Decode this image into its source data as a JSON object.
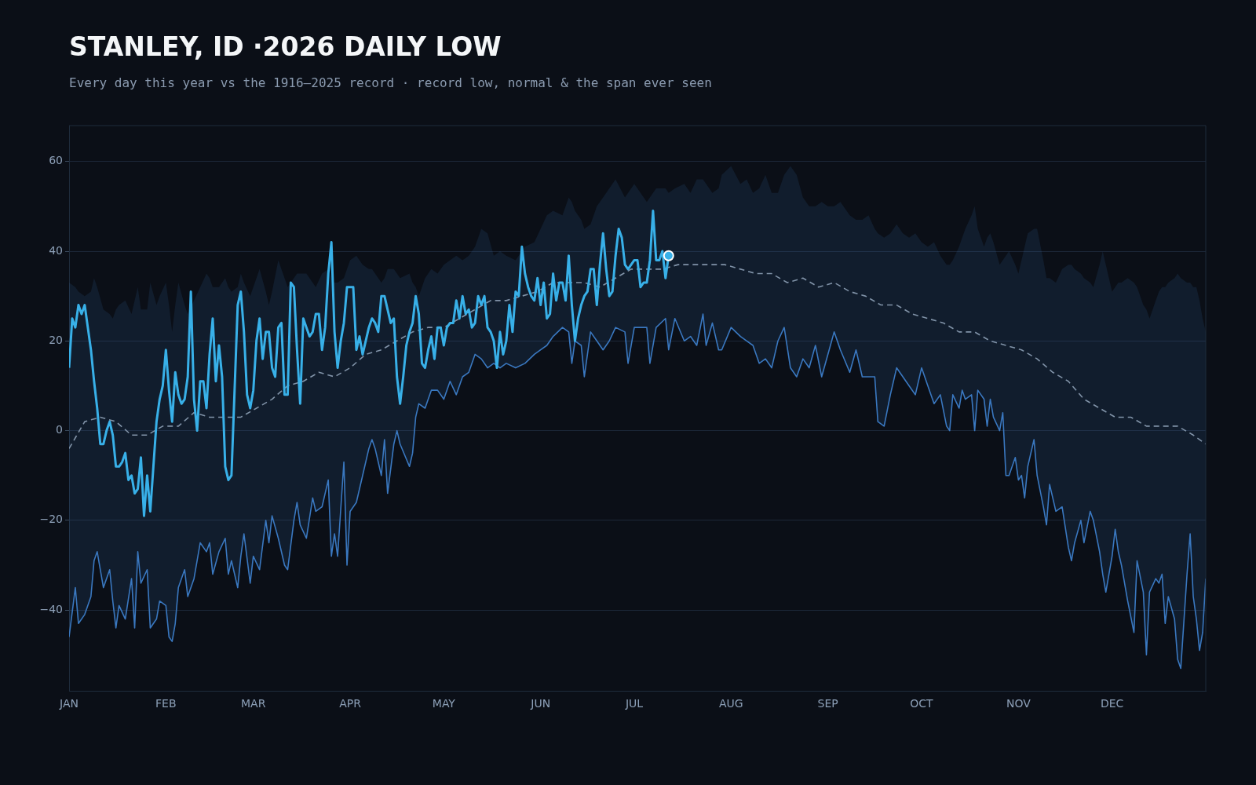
{
  "chart_data": {
    "type": "line",
    "title": "STANLEY, ID ·2026 DAILY LOW",
    "subtitle": "Every day this year vs the 1916–2025 record · record low, normal & the span ever seen",
    "xlim": [
      "2026-01-01",
      "2026-12-31"
    ],
    "xticks": [
      {
        "value": "2026-01-01",
        "label": "JAN"
      },
      {
        "value": "2026-02-01",
        "label": "FEB"
      },
      {
        "value": "2026-03-01",
        "label": "MAR"
      },
      {
        "value": "2026-04-01",
        "label": "APR"
      },
      {
        "value": "2026-05-01",
        "label": "MAY"
      },
      {
        "value": "2026-06-01",
        "label": "JUN"
      },
      {
        "value": "2026-07-01",
        "label": "JUL"
      },
      {
        "value": "2026-08-01",
        "label": "AUG"
      },
      {
        "value": "2026-09-01",
        "label": "SEP"
      },
      {
        "value": "2026-10-01",
        "label": "OCT"
      },
      {
        "value": "2026-11-01",
        "label": "NOV"
      },
      {
        "value": "2026-12-01",
        "label": "DEC"
      }
    ],
    "ylim": [
      -58,
      68
    ],
    "yticks": [
      {
        "value": -40,
        "label": "−40"
      },
      {
        "value": -20,
        "label": "−20"
      },
      0,
      20,
      40,
      60
    ],
    "grid": "y",
    "series": [
      {
        "type": "line",
        "color": "#3a78c0",
        "x": [
          "2026-01-01",
          "2026-01-03",
          "2026-01-04",
          "2026-01-06",
          "2026-01-08",
          "2026-01-09",
          "2026-01-10",
          "2026-01-12",
          "2026-01-14",
          "2026-01-15",
          "2026-01-16",
          "2026-01-17",
          "2026-01-19",
          "2026-01-21",
          "2026-01-22",
          "2026-01-23",
          "2026-01-24",
          "2026-01-26",
          "2026-01-27",
          "2026-01-29",
          "2026-01-30",
          "2026-02-01",
          "2026-02-02",
          "2026-02-03",
          "2026-02-04",
          "2026-02-05",
          "2026-02-07",
          "2026-02-08",
          "2026-02-10",
          "2026-02-12",
          "2026-02-14",
          "2026-02-15",
          "2026-02-16",
          "2026-02-18",
          "2026-02-20",
          "2026-02-21",
          "2026-02-22",
          "2026-02-24",
          "2026-02-25",
          "2026-02-26",
          "2026-02-28",
          "2026-03-01",
          "2026-03-03",
          "2026-03-05",
          "2026-03-06",
          "2026-03-07",
          "2026-03-09",
          "2026-03-11",
          "2026-03-12",
          "2026-03-14",
          "2026-03-15",
          "2026-03-16",
          "2026-03-18",
          "2026-03-20",
          "2026-03-21",
          "2026-03-23",
          "2026-03-25",
          "2026-03-26",
          "2026-03-27",
          "2026-03-28",
          "2026-03-30",
          "2026-03-31",
          "2026-04-01",
          "2026-04-03",
          "2026-04-05",
          "2026-04-07",
          "2026-04-08",
          "2026-04-09",
          "2026-04-11",
          "2026-04-12",
          "2026-04-13",
          "2026-04-15",
          "2026-04-16",
          "2026-04-17",
          "2026-04-20",
          "2026-04-21",
          "2026-04-22",
          "2026-04-23",
          "2026-04-25",
          "2026-04-27",
          "2026-04-29",
          "2026-05-01",
          "2026-05-03",
          "2026-05-05",
          "2026-05-07",
          "2026-05-09",
          "2026-05-11",
          "2026-05-13",
          "2026-05-15",
          "2026-05-17",
          "2026-05-19",
          "2026-05-21",
          "2026-05-24",
          "2026-05-27",
          "2026-05-30",
          "2026-06-01",
          "2026-06-03",
          "2026-06-05",
          "2026-06-08",
          "2026-06-10",
          "2026-06-11",
          "2026-06-12",
          "2026-06-14",
          "2026-06-15",
          "2026-06-17",
          "2026-06-19",
          "2026-06-21",
          "2026-06-23",
          "2026-06-25",
          "2026-06-28",
          "2026-06-29",
          "2026-07-01",
          "2026-07-05",
          "2026-07-06",
          "2026-07-08",
          "2026-07-11",
          "2026-07-12",
          "2026-07-14",
          "2026-07-17",
          "2026-07-19",
          "2026-07-21",
          "2026-07-23",
          "2026-07-24",
          "2026-07-26",
          "2026-07-28",
          "2026-07-29",
          "2026-08-01",
          "2026-08-04",
          "2026-08-06",
          "2026-08-08",
          "2026-08-10",
          "2026-08-12",
          "2026-08-14",
          "2026-08-16",
          "2026-08-18",
          "2026-08-20",
          "2026-08-22",
          "2026-08-24",
          "2026-08-26",
          "2026-08-28",
          "2026-08-30",
          "2026-09-01",
          "2026-09-03",
          "2026-09-05",
          "2026-09-08",
          "2026-09-10",
          "2026-09-12",
          "2026-09-14",
          "2026-09-16",
          "2026-09-17",
          "2026-09-19",
          "2026-09-21",
          "2026-09-23",
          "2026-09-25",
          "2026-09-27",
          "2026-09-29",
          "2026-10-01",
          "2026-10-03",
          "2026-10-05",
          "2026-10-07",
          "2026-10-09",
          "2026-10-10",
          "2026-10-11",
          "2026-10-13",
          "2026-10-14",
          "2026-10-15",
          "2026-10-17",
          "2026-10-18",
          "2026-10-19",
          "2026-10-21",
          "2026-10-22",
          "2026-10-23",
          "2026-10-24",
          "2026-10-26",
          "2026-10-27",
          "2026-10-28",
          "2026-10-29",
          "2026-10-31",
          "2026-11-01",
          "2026-11-02",
          "2026-11-03",
          "2026-11-04",
          "2026-11-06",
          "2026-11-07",
          "2026-11-09",
          "2026-11-10",
          "2026-11-11",
          "2026-11-13",
          "2026-11-15",
          "2026-11-17",
          "2026-11-18",
          "2026-11-19",
          "2026-11-21",
          "2026-11-22",
          "2026-11-24",
          "2026-11-25",
          "2026-11-27",
          "2026-11-28",
          "2026-11-29",
          "2026-12-01",
          "2026-12-02",
          "2026-12-03",
          "2026-12-04",
          "2026-12-06",
          "2026-12-08",
          "2026-12-09",
          "2026-12-11",
          "2026-12-12",
          "2026-12-13",
          "2026-12-15",
          "2026-12-16",
          "2026-12-17",
          "2026-12-18",
          "2026-12-19",
          "2026-12-21",
          "2026-12-22",
          "2026-12-23",
          "2026-12-25",
          "2026-12-26",
          "2026-12-27",
          "2026-12-28",
          "2026-12-29",
          "2026-12-30",
          "2026-12-31"
        ],
        "values": [
          -46,
          -35,
          -43,
          -41,
          -37,
          -29,
          -27,
          -35,
          -31,
          -38,
          -44,
          -39,
          -42,
          -33,
          -44,
          -27,
          -34,
          -31,
          -44,
          -42,
          -38,
          -39,
          -46,
          -47,
          -43,
          -35,
          -31,
          -37,
          -33,
          -25,
          -27,
          -25,
          -32,
          -27,
          -24,
          -32,
          -29,
          -35,
          -28,
          -23,
          -34,
          -28,
          -31,
          -20,
          -25,
          -19,
          -24,
          -30,
          -31,
          -20,
          -16,
          -21,
          -24,
          -15,
          -18,
          -17,
          -11,
          -28,
          -23,
          -28,
          -7,
          -30,
          -18,
          -16,
          -10,
          -4,
          -2,
          -4,
          -10,
          -2,
          -14,
          -3,
          0,
          -3,
          -8,
          -5,
          3,
          6,
          5,
          9,
          9,
          7,
          11,
          8,
          12,
          13,
          17,
          16,
          14,
          15,
          14,
          15,
          14,
          15,
          17,
          18,
          19,
          21,
          23,
          22,
          15,
          20,
          19,
          12,
          22,
          20,
          18,
          20,
          23,
          22,
          15,
          23,
          23,
          15,
          23,
          25,
          18,
          25,
          20,
          21,
          19,
          26,
          19,
          24,
          18,
          18,
          23,
          21,
          20,
          19,
          15,
          16,
          14,
          20,
          23,
          14,
          12,
          16,
          14,
          19,
          12,
          17,
          22,
          18,
          13,
          18,
          12,
          12,
          12,
          2,
          1,
          8,
          14,
          12,
          10,
          8,
          14,
          10,
          6,
          8,
          1,
          0,
          8,
          5,
          9,
          7,
          8,
          0,
          9,
          7,
          1,
          7,
          3,
          0,
          4,
          -10,
          -10,
          -6,
          -11,
          -10,
          -15,
          -8,
          -2,
          -10,
          -17,
          -21,
          -12,
          -18,
          -17,
          -26,
          -29,
          -25,
          -20,
          -25,
          -18,
          -20,
          -27,
          -32,
          -36,
          -28,
          -22,
          -27,
          -30,
          -38,
          -45,
          -29,
          -36,
          -50,
          -36,
          -33,
          -34,
          -32,
          -43,
          -37,
          -42,
          -51,
          -53,
          -32,
          -23,
          -37,
          -42,
          -49,
          -45,
          -33
        ],
        "lower": [
          -46,
          -35,
          -43,
          -41,
          -37,
          -29,
          -27,
          -35,
          -31,
          -38,
          -44,
          -39,
          -42,
          -33,
          -44,
          -27,
          -34,
          -31,
          -44,
          -42,
          -38,
          -39,
          -46,
          -47,
          -43,
          -35,
          -31,
          -37,
          -33,
          -25,
          -27,
          -25,
          -32,
          -27,
          -24,
          -32,
          -29,
          -35,
          -28,
          -23,
          -34,
          -28,
          -31,
          -20,
          -25,
          -19,
          -24,
          -30,
          -31,
          -20,
          -16,
          -21,
          -24,
          -15,
          -18,
          -17,
          -11,
          -28,
          -23,
          -28,
          -7,
          -30,
          -18,
          -16,
          -10,
          -4,
          -2,
          -4,
          -10,
          -2,
          -14,
          -3,
          0,
          -3,
          -8,
          -5,
          3,
          6,
          5,
          9,
          9,
          7,
          11,
          8,
          12,
          13,
          17,
          16,
          14,
          15,
          14,
          15,
          14,
          15,
          17,
          18,
          19,
          21,
          23,
          22,
          15,
          20,
          19,
          12,
          22,
          20,
          18,
          20,
          23,
          22,
          15,
          23,
          23,
          15,
          23,
          25,
          18,
          25,
          20,
          21,
          19,
          26,
          19,
          24,
          18,
          18,
          23,
          21,
          20,
          19,
          15,
          16,
          14,
          20,
          23,
          14,
          12,
          16,
          14,
          19,
          12,
          17,
          22,
          18,
          13,
          18,
          12,
          12,
          12,
          2,
          1,
          8,
          14,
          12,
          10,
          8,
          14,
          10,
          6,
          8,
          1,
          0,
          8,
          5,
          9,
          7,
          8,
          0,
          9,
          7,
          1,
          7,
          3,
          0,
          4,
          -10,
          -10,
          -6,
          -11,
          -10,
          -15,
          -8,
          -2,
          -10,
          -17,
          -21,
          -12,
          -18,
          -17,
          -26,
          -29,
          -25,
          -20,
          -25,
          -18,
          -20,
          -27,
          -32,
          -36,
          -28,
          -22,
          -27,
          -30,
          -38,
          -45,
          -29,
          -36,
          -50,
          -36,
          -33,
          -34,
          -32,
          -43,
          -37,
          -42,
          -51,
          -53,
          -32,
          -23,
          -37,
          -42,
          -49,
          -45,
          -33
        ],
        "upper": [
          33,
          32,
          31,
          30,
          31,
          34,
          32,
          27,
          26,
          25,
          27,
          28,
          29,
          26,
          29,
          32,
          27,
          27,
          33,
          28,
          30,
          33,
          28,
          22,
          28,
          33,
          28,
          26,
          29,
          32,
          35,
          34,
          32,
          32,
          34,
          32,
          31,
          32,
          35,
          33,
          30,
          32,
          36,
          31,
          28,
          31,
          38,
          34,
          32,
          34,
          35,
          35,
          35,
          33,
          32,
          35,
          36,
          34,
          33,
          33,
          34,
          36,
          38,
          39,
          37,
          36,
          36,
          35,
          33,
          34,
          36,
          36,
          35,
          34,
          35,
          33,
          32,
          30,
          34,
          36,
          35,
          37,
          38,
          39,
          38,
          39,
          41,
          45,
          44,
          39,
          40,
          39,
          38,
          41,
          42,
          45,
          48,
          49,
          48,
          52,
          51,
          49,
          47,
          45,
          46,
          50,
          52,
          54,
          56,
          52,
          53,
          55,
          51,
          52,
          54,
          54,
          53,
          54,
          55,
          53,
          56,
          56,
          55,
          53,
          54,
          57,
          59,
          55,
          56,
          53,
          54,
          57,
          53,
          53,
          57,
          59,
          57,
          52,
          50,
          50,
          51,
          50,
          50,
          51,
          48,
          47,
          47,
          48,
          45,
          44,
          43,
          44,
          46,
          44,
          43,
          44,
          42,
          41,
          42,
          39,
          37,
          37,
          38,
          41,
          43,
          45,
          48,
          50,
          45,
          41,
          43,
          44,
          42,
          37,
          38,
          39,
          40,
          37,
          35,
          38,
          41,
          44,
          45,
          45,
          38,
          34,
          34,
          33,
          36,
          37,
          37,
          36,
          35,
          34,
          33,
          32,
          37,
          40,
          37,
          31,
          32,
          33,
          33,
          34,
          33,
          32,
          28,
          27,
          25,
          29,
          31,
          32,
          32,
          33,
          34,
          35,
          34,
          33,
          33,
          32,
          32,
          29,
          25,
          22
        ]
      },
      {
        "type": "line",
        "line_style": "dashed",
        "color": "#8193a8",
        "x": [
          "2026-01-01",
          "2026-01-06",
          "2026-01-11",
          "2026-01-16",
          "2026-01-21",
          "2026-01-26",
          "2026-01-31",
          "2026-02-05",
          "2026-02-10",
          "2026-02-15",
          "2026-02-20",
          "2026-02-25",
          "2026-03-02",
          "2026-03-07",
          "2026-03-12",
          "2026-03-17",
          "2026-03-22",
          "2026-03-27",
          "2026-04-01",
          "2026-04-06",
          "2026-04-11",
          "2026-04-16",
          "2026-04-21",
          "2026-04-26",
          "2026-05-01",
          "2026-05-06",
          "2026-05-11",
          "2026-05-16",
          "2026-05-21",
          "2026-05-26",
          "2026-05-31",
          "2026-06-05",
          "2026-06-10",
          "2026-06-15",
          "2026-06-20",
          "2026-06-25",
          "2026-06-30",
          "2026-07-05",
          "2026-07-10",
          "2026-07-15",
          "2026-07-20",
          "2026-07-25",
          "2026-07-30",
          "2026-08-04",
          "2026-08-09",
          "2026-08-14",
          "2026-08-19",
          "2026-08-24",
          "2026-08-29",
          "2026-09-03",
          "2026-09-08",
          "2026-09-13",
          "2026-09-18",
          "2026-09-23",
          "2026-09-28",
          "2026-10-03",
          "2026-10-08",
          "2026-10-13",
          "2026-10-18",
          "2026-10-23",
          "2026-10-28",
          "2026-11-02",
          "2026-11-07",
          "2026-11-12",
          "2026-11-17",
          "2026-11-22",
          "2026-11-27",
          "2026-12-02",
          "2026-12-07",
          "2026-12-12",
          "2026-12-17",
          "2026-12-22",
          "2026-12-27",
          "2026-12-31"
        ],
        "values": [
          -4,
          2,
          3,
          2,
          -1,
          -1,
          1,
          1,
          4,
          3,
          3,
          3,
          5,
          7,
          10,
          11,
          13,
          12,
          14,
          17,
          18,
          20,
          22,
          23,
          23,
          25,
          27,
          29,
          29,
          30,
          31,
          33,
          33,
          33,
          32,
          34,
          36,
          36,
          36,
          37,
          37,
          37,
          37,
          36,
          35,
          35,
          33,
          34,
          32,
          33,
          31,
          30,
          28,
          28,
          26,
          25,
          24,
          22,
          22,
          20,
          19,
          18,
          16,
          13,
          11,
          7,
          5,
          3,
          3,
          1,
          1,
          1,
          -1,
          -3
        ]
      },
      {
        "type": "line",
        "color": "#38b0e8",
        "x": [
          "2026-01-01",
          "2026-01-02",
          "2026-01-03",
          "2026-01-04",
          "2026-01-05",
          "2026-01-06",
          "2026-01-07",
          "2026-01-08",
          "2026-01-09",
          "2026-01-10",
          "2026-01-11",
          "2026-01-12",
          "2026-01-13",
          "2026-01-14",
          "2026-01-15",
          "2026-01-16",
          "2026-01-17",
          "2026-01-18",
          "2026-01-19",
          "2026-01-20",
          "2026-01-21",
          "2026-01-22",
          "2026-01-23",
          "2026-01-24",
          "2026-01-25",
          "2026-01-26",
          "2026-01-27",
          "2026-01-28",
          "2026-01-29",
          "2026-01-30",
          "2026-01-31",
          "2026-02-01",
          "2026-02-02",
          "2026-02-03",
          "2026-02-04",
          "2026-02-05",
          "2026-02-06",
          "2026-02-07",
          "2026-02-08",
          "2026-02-09",
          "2026-02-10",
          "2026-02-11",
          "2026-02-12",
          "2026-02-13",
          "2026-02-14",
          "2026-02-15",
          "2026-02-16",
          "2026-02-17",
          "2026-02-18",
          "2026-02-19",
          "2026-02-20",
          "2026-02-21",
          "2026-02-22",
          "2026-02-23",
          "2026-02-24",
          "2026-02-25",
          "2026-02-26",
          "2026-02-27",
          "2026-02-28",
          "2026-03-01",
          "2026-03-02",
          "2026-03-03",
          "2026-03-04",
          "2026-03-05",
          "2026-03-06",
          "2026-03-07",
          "2026-03-08",
          "2026-03-09",
          "2026-03-10",
          "2026-03-11",
          "2026-03-12",
          "2026-03-13",
          "2026-03-14",
          "2026-03-15",
          "2026-03-16",
          "2026-03-17",
          "2026-03-18",
          "2026-03-19",
          "2026-03-20",
          "2026-03-21",
          "2026-03-22",
          "2026-03-23",
          "2026-03-24",
          "2026-03-25",
          "2026-03-26",
          "2026-03-27",
          "2026-03-28",
          "2026-03-29",
          "2026-03-30",
          "2026-03-31",
          "2026-04-01",
          "2026-04-02",
          "2026-04-03",
          "2026-04-04",
          "2026-04-05",
          "2026-04-06",
          "2026-04-07",
          "2026-04-08",
          "2026-04-09",
          "2026-04-10",
          "2026-04-11",
          "2026-04-12",
          "2026-04-13",
          "2026-04-14",
          "2026-04-15",
          "2026-04-16",
          "2026-04-17",
          "2026-04-18",
          "2026-04-19",
          "2026-04-20",
          "2026-04-21",
          "2026-04-22",
          "2026-04-23",
          "2026-04-24",
          "2026-04-25",
          "2026-04-26",
          "2026-04-27",
          "2026-04-28",
          "2026-04-29",
          "2026-04-30",
          "2026-05-01",
          "2026-05-02",
          "2026-05-03",
          "2026-05-04",
          "2026-05-05",
          "2026-05-06",
          "2026-05-07",
          "2026-05-08",
          "2026-05-09",
          "2026-05-10",
          "2026-05-11",
          "2026-05-12",
          "2026-05-13",
          "2026-05-14",
          "2026-05-15",
          "2026-05-16",
          "2026-05-17",
          "2026-05-18",
          "2026-05-19",
          "2026-05-20",
          "2026-05-21",
          "2026-05-22",
          "2026-05-23",
          "2026-05-24",
          "2026-05-25",
          "2026-05-26",
          "2026-05-27",
          "2026-05-28",
          "2026-05-29",
          "2026-05-30",
          "2026-05-31",
          "2026-06-01",
          "2026-06-02",
          "2026-06-03",
          "2026-06-04",
          "2026-06-05",
          "2026-06-06",
          "2026-06-07",
          "2026-06-08",
          "2026-06-09",
          "2026-06-10",
          "2026-06-11",
          "2026-06-12",
          "2026-06-13",
          "2026-06-14",
          "2026-06-15",
          "2026-06-16",
          "2026-06-17",
          "2026-06-18",
          "2026-06-19",
          "2026-06-20",
          "2026-06-21",
          "2026-06-22",
          "2026-06-23",
          "2026-06-24",
          "2026-06-25",
          "2026-06-26",
          "2026-06-27",
          "2026-06-28",
          "2026-06-29",
          "2026-06-30",
          "2026-07-01",
          "2026-07-02",
          "2026-07-03",
          "2026-07-04",
          "2026-07-05",
          "2026-07-06",
          "2026-07-07",
          "2026-07-08",
          "2026-07-09",
          "2026-07-10",
          "2026-07-11",
          "2026-07-12"
        ],
        "values": [
          14,
          25,
          23,
          28,
          26,
          28,
          23,
          18,
          11,
          5,
          -3,
          -3,
          0,
          2,
          -1,
          -8,
          -8,
          -7,
          -5,
          -11,
          -10,
          -14,
          -13,
          -6,
          -19,
          -10,
          -18,
          -8,
          2,
          7,
          10,
          18,
          9,
          2,
          13,
          8,
          6,
          7,
          12,
          31,
          7,
          0,
          11,
          11,
          5,
          17,
          25,
          11,
          19,
          12,
          -8,
          -11,
          -10,
          9,
          28,
          31,
          22,
          8,
          5,
          9,
          20,
          25,
          16,
          22,
          22,
          14,
          12,
          23,
          24,
          8,
          8,
          33,
          32,
          18,
          6,
          25,
          23,
          21,
          22,
          26,
          26,
          18,
          23,
          35,
          42,
          22,
          14,
          20,
          24,
          32,
          32,
          32,
          18,
          21,
          17,
          20,
          23,
          25,
          24,
          22,
          30,
          30,
          27,
          24,
          25,
          12,
          6,
          12,
          19,
          22,
          24,
          30,
          26,
          15,
          14,
          18,
          21,
          16,
          23,
          23,
          19,
          23,
          24,
          24,
          29,
          25,
          30,
          26,
          27,
          23,
          24,
          30,
          28,
          30,
          23,
          22,
          20,
          14,
          22,
          17,
          20,
          28,
          22,
          31,
          30,
          41,
          35,
          32,
          30,
          29,
          34,
          28,
          33,
          25,
          26,
          35,
          29,
          33,
          33,
          29,
          39,
          28,
          20,
          25,
          28,
          30,
          31,
          36,
          36,
          28,
          37,
          44,
          36,
          30,
          31,
          39,
          45,
          43,
          37,
          36,
          37,
          38,
          38,
          32,
          33,
          33,
          38,
          49,
          38,
          38,
          40,
          34,
          39
        ]
      }
    ]
  }
}
